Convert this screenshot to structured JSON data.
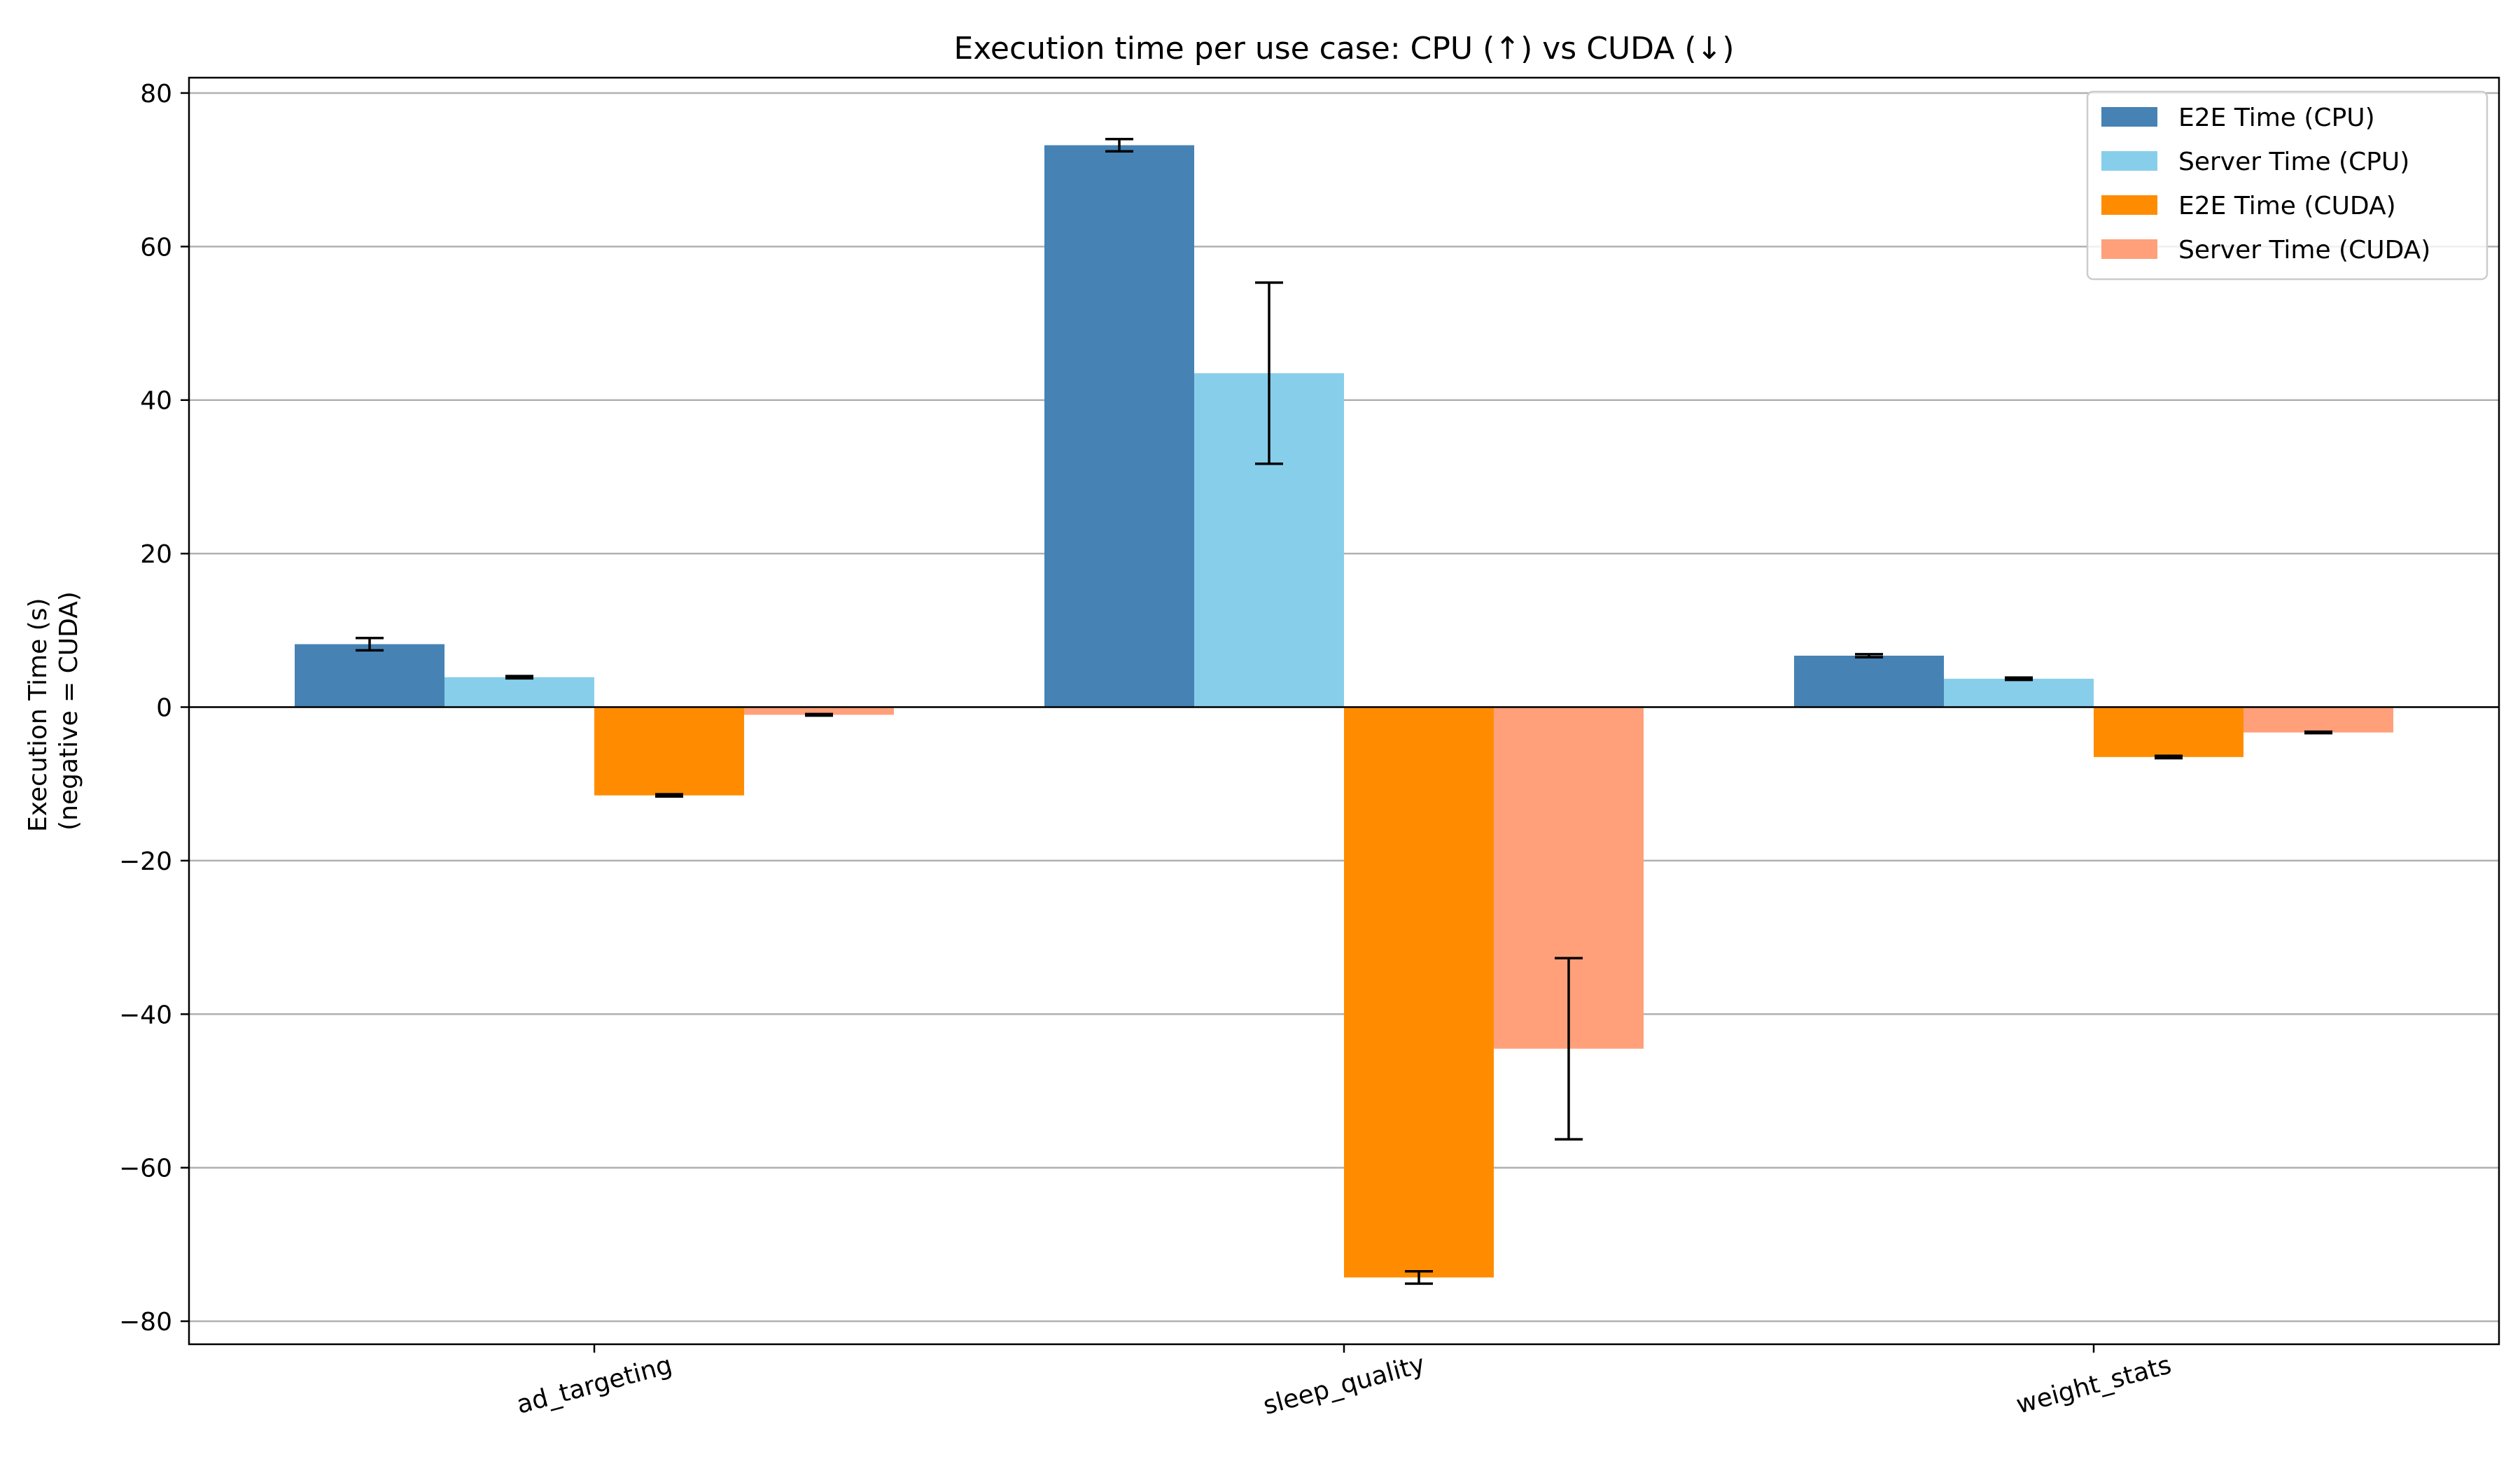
{
  "chart_data": {
    "type": "bar",
    "title": "Execution time per use case: CPU (↑) vs CUDA (↓)",
    "xlabel": "",
    "ylabel_line1": "Execution Time (s)",
    "ylabel_line2": "(negative = CUDA)",
    "categories": [
      "ad_targeting",
      "sleep_quality",
      "weight_stats"
    ],
    "ylim": [
      -83,
      82
    ],
    "yticks": [
      80,
      60,
      40,
      20,
      0,
      -20,
      -40,
      -60,
      -80
    ],
    "ytick_labels": [
      "80",
      "60",
      "40",
      "20",
      "0",
      "−20",
      "−40",
      "−60",
      "−80"
    ],
    "grid": "horizontal",
    "legend_position": "top-right",
    "series": [
      {
        "name": "E2E Time (CPU)",
        "color": "#4682b4",
        "values": [
          8.2,
          73.2,
          6.7
        ],
        "errors": [
          0.8,
          0.8,
          0.2
        ]
      },
      {
        "name": "Server Time (CPU)",
        "color": "#87ceeb",
        "values": [
          3.9,
          43.5,
          3.7
        ],
        "errors": [
          0.15,
          11.8,
          0.15
        ]
      },
      {
        "name": "E2E Time (CUDA)",
        "color": "#ff8c00",
        "values": [
          -11.5,
          -74.3,
          -6.5
        ],
        "errors": [
          0.15,
          0.8,
          0.15
        ]
      },
      {
        "name": "Server Time (CUDA)",
        "color": "#ffa07a",
        "values": [
          -1.0,
          -44.5,
          -3.3
        ],
        "errors": [
          0.1,
          11.8,
          0.1
        ]
      }
    ]
  }
}
